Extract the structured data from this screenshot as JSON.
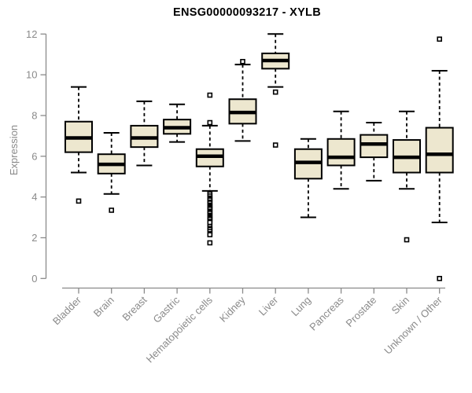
{
  "title": "ENSG00000093217 - XYLB",
  "chart_data": {
    "type": "boxplot",
    "title": "ENSG00000093217 - XYLB",
    "xlabel": "",
    "ylabel": "Expression",
    "ylim": [
      -0.6,
      12.4
    ],
    "yticks": [
      0,
      2,
      4,
      6,
      8,
      10,
      12
    ],
    "grid": false,
    "legend": "none",
    "orientation": "vertical",
    "x_label_rotation_deg": 45,
    "categories": [
      "Bladder",
      "Brain",
      "Breast",
      "Gastric",
      "Hematopoietic cells",
      "Kidney",
      "Liver",
      "Lung",
      "Pancreas",
      "Prostate",
      "Skin",
      "Unknown / Other"
    ],
    "series": [
      {
        "category": "Bladder",
        "whisker_low": 5.2,
        "q1": 6.2,
        "median": 6.9,
        "q3": 7.7,
        "whisker_high": 9.4,
        "outliers": [
          3.8
        ]
      },
      {
        "category": "Brain",
        "whisker_low": 4.15,
        "q1": 5.15,
        "median": 5.6,
        "q3": 6.1,
        "whisker_high": 7.15,
        "outliers": [
          3.35
        ]
      },
      {
        "category": "Breast",
        "whisker_low": 5.55,
        "q1": 6.45,
        "median": 6.9,
        "q3": 7.5,
        "whisker_high": 8.7,
        "outliers": []
      },
      {
        "category": "Gastric",
        "whisker_low": 6.7,
        "q1": 7.1,
        "median": 7.4,
        "q3": 7.8,
        "whisker_high": 8.55,
        "outliers": []
      },
      {
        "category": "Hematopoietic cells",
        "whisker_low": 4.3,
        "q1": 5.5,
        "median": 6.0,
        "q3": 6.35,
        "whisker_high": 7.5,
        "outliers": [
          9.0,
          7.65,
          4.15,
          4.05,
          3.95,
          3.9,
          3.85,
          3.75,
          3.7,
          3.6,
          3.55,
          3.5,
          3.45,
          3.4,
          3.3,
          3.25,
          3.2,
          3.1,
          3.05,
          3.0,
          2.95,
          2.9,
          2.8,
          2.75,
          2.55,
          2.45,
          2.4,
          2.3,
          2.2,
          2.15,
          1.75
        ]
      },
      {
        "category": "Kidney",
        "whisker_low": 6.75,
        "q1": 7.6,
        "median": 8.15,
        "q3": 8.8,
        "whisker_high": 10.5,
        "outliers": [
          10.65
        ]
      },
      {
        "category": "Liver",
        "whisker_low": 9.4,
        "q1": 10.3,
        "median": 10.7,
        "q3": 11.05,
        "whisker_high": 12.0,
        "outliers": [
          9.15,
          6.55
        ]
      },
      {
        "category": "Lung",
        "whisker_low": 3.0,
        "q1": 4.9,
        "median": 5.7,
        "q3": 6.35,
        "whisker_high": 6.85,
        "outliers": []
      },
      {
        "category": "Pancreas",
        "whisker_low": 4.4,
        "q1": 5.55,
        "median": 5.95,
        "q3": 6.85,
        "whisker_high": 8.2,
        "outliers": []
      },
      {
        "category": "Prostate",
        "whisker_low": 4.8,
        "q1": 5.95,
        "median": 6.6,
        "q3": 7.05,
        "whisker_high": 7.65,
        "outliers": []
      },
      {
        "category": "Skin",
        "whisker_low": 4.4,
        "q1": 5.2,
        "median": 5.95,
        "q3": 6.8,
        "whisker_high": 8.2,
        "outliers": [
          1.9
        ]
      },
      {
        "category": "Unknown / Other",
        "whisker_low": 2.75,
        "q1": 5.2,
        "median": 6.1,
        "q3": 7.4,
        "whisker_high": 10.2,
        "outliers": [
          11.75,
          0.0
        ]
      }
    ],
    "colors": {
      "background": "#ffffff",
      "box_fill": "#ede7cf",
      "box_stroke": "#000000",
      "median": "#000000",
      "whisker": "#000000",
      "outlier_stroke": "#000000",
      "outlier_fill": "#ffffff",
      "axis": "#8a8a8a",
      "tick_label": "#8a8a8a",
      "title": "#000000"
    }
  }
}
